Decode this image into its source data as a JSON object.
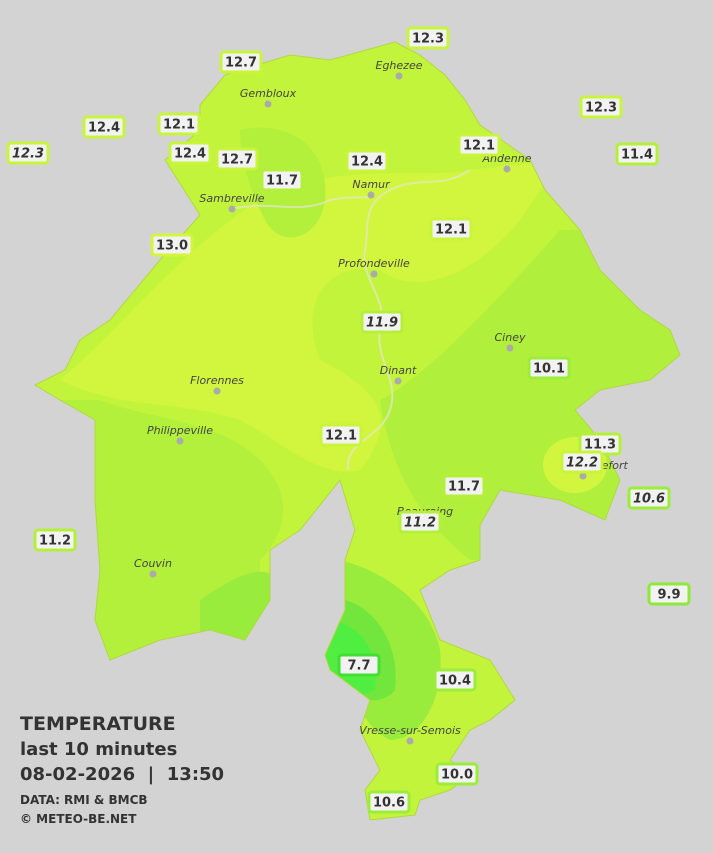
{
  "header": {
    "title": "TEMPERATURE",
    "subtitle": "last 10 minutes",
    "datetime": "08-02-2026  |  13:50",
    "source": "DATA: RMI & BMCB",
    "copyright": "© METEO-BE.NET"
  },
  "towns": [
    "Eghezee",
    "Gembloux",
    "Andenne",
    "Namur",
    "Sambreville",
    "Profondeville",
    "Ciney",
    "Dinant",
    "Florennes",
    "Philippeville",
    "Rochefort",
    "Beauraing",
    "Couvin",
    "Vresse-sur-Semois"
  ],
  "stations": [
    {
      "label": "12.3",
      "color": "#c8f53a",
      "italic": false
    },
    {
      "label": "12.7",
      "color": "#c8f53a",
      "italic": false
    },
    {
      "label": "12.4",
      "color": "#c8f53a",
      "italic": false
    },
    {
      "label": "12.1",
      "color": "#c8f53a",
      "italic": false
    },
    {
      "label": "12.3",
      "color": "#c8f53a",
      "italic": true
    },
    {
      "label": "12.4",
      "color": "#c8f53a",
      "italic": false
    },
    {
      "label": "12.7",
      "color": "#c8f53a",
      "italic": false
    },
    {
      "label": "11.7",
      "color": "#b4f03a",
      "italic": false
    },
    {
      "label": "12.4",
      "color": "#c8f53a",
      "italic": false
    },
    {
      "label": "12.1",
      "color": "#c8f53a",
      "italic": false
    },
    {
      "label": "12.3",
      "color": "#c8f53a",
      "italic": false
    },
    {
      "label": "11.4",
      "color": "#b4f03a",
      "italic": false
    },
    {
      "label": "13.0",
      "color": "#d4f53c",
      "italic": false
    },
    {
      "label": "12.1",
      "color": "#c8f53a",
      "italic": false
    },
    {
      "label": "11.9",
      "color": "#b4f03a",
      "italic": true
    },
    {
      "label": "10.1",
      "color": "#9ced3a",
      "italic": false
    },
    {
      "label": "12.1",
      "color": "#c8f53a",
      "italic": false
    },
    {
      "label": "11.3",
      "color": "#b4f03a",
      "italic": false
    },
    {
      "label": "12.2",
      "color": "#c8f53a",
      "italic": true
    },
    {
      "label": "11.7",
      "color": "#b4f03a",
      "italic": false
    },
    {
      "label": "11.2",
      "color": "#b4f03a",
      "italic": true
    },
    {
      "label": "10.6",
      "color": "#9ced3a",
      "italic": true
    },
    {
      "label": "11.2",
      "color": "#b4f03a",
      "italic": false
    },
    {
      "label": "9.9",
      "color": "#8eea3a",
      "italic": false
    },
    {
      "label": "7.7",
      "color": "#44dd33",
      "italic": false
    },
    {
      "label": "10.4",
      "color": "#9ced3a",
      "italic": false
    },
    {
      "label": "10.0",
      "color": "#9ced3a",
      "italic": false
    },
    {
      "label": "10.6",
      "color": "#9ced3a",
      "italic": false
    }
  ]
}
